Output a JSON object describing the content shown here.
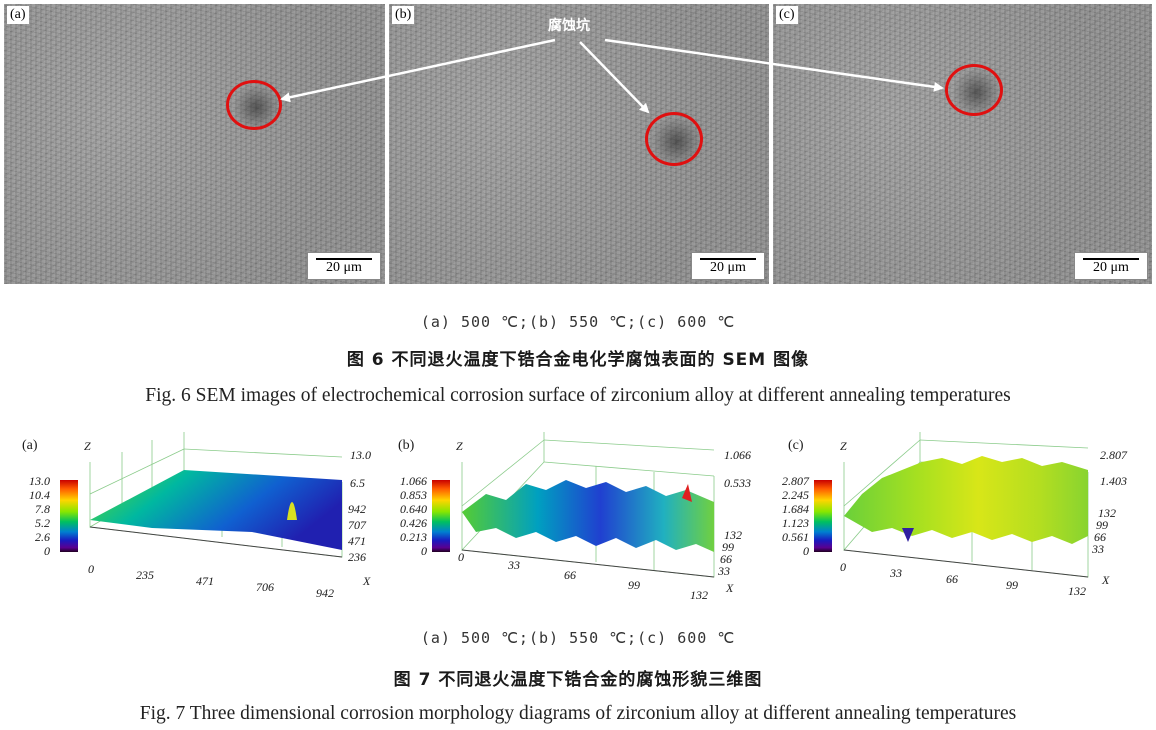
{
  "figure6": {
    "panels": [
      {
        "label": "(a)",
        "scale": "20 μm"
      },
      {
        "label": "(b)",
        "scale": "20 μm"
      },
      {
        "label": "(c)",
        "scale": "20 μm"
      }
    ],
    "annotation": "腐蚀坑",
    "subcaption": "(a) 500 ℃;(b) 550 ℃;(c) 600 ℃",
    "caption_cn": "图 6   不同退火温度下锆合金电化学腐蚀表面的 SEM 图像",
    "caption_en": "Fig. 6   SEM images of electrochemical corrosion surface of zirconium alloy at different annealing temperatures"
  },
  "figure7": {
    "panels": [
      {
        "label": "(a)",
        "colorbar_ticks": [
          "13.0",
          "10.4",
          "7.8",
          "5.2",
          "2.6",
          "0"
        ],
        "z_axis_ticks": [
          "13.0",
          "6.5"
        ],
        "y_ticks": [
          "942",
          "707",
          "471",
          "236"
        ],
        "x_ticks": [
          "0",
          "235",
          "471",
          "706",
          "942"
        ],
        "axis_z": "Z",
        "axis_x": "X"
      },
      {
        "label": "(b)",
        "colorbar_ticks": [
          "1.066",
          "0.853",
          "0.640",
          "0.426",
          "0.213",
          "0"
        ],
        "z_axis_ticks": [
          "1.066",
          "0.533"
        ],
        "y_ticks": [
          "132",
          "99",
          "66",
          "33"
        ],
        "x_ticks": [
          "0",
          "33",
          "66",
          "99",
          "132"
        ],
        "axis_z": "Z",
        "axis_x": "X"
      },
      {
        "label": "(c)",
        "colorbar_ticks": [
          "2.807",
          "2.245",
          "1.684",
          "1.123",
          "0.561",
          "0"
        ],
        "z_axis_ticks": [
          "2.807",
          "1.403"
        ],
        "y_ticks": [
          "132",
          "99",
          "66",
          "33"
        ],
        "x_ticks": [
          "0",
          "33",
          "66",
          "99",
          "132"
        ],
        "axis_z": "Z",
        "axis_x": "X"
      }
    ],
    "subcaption": "(a) 500 ℃;(b) 550 ℃;(c) 600 ℃",
    "caption_cn": "图 7   不同退火温度下锆合金的腐蚀形貌三维图",
    "caption_en": "Fig. 7   Three dimensional corrosion morphology diagrams of zirconium alloy at different annealing temperatures"
  },
  "colors": {
    "pit_circle": "#e01010",
    "arrow": "#ffffff"
  }
}
